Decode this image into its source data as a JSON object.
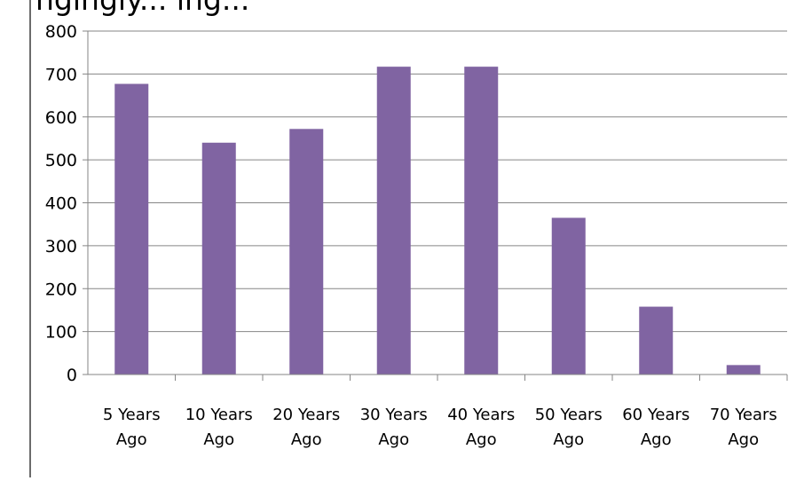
{
  "chart_data": {
    "type": "bar",
    "title_fragment": "ngingly... ing...",
    "categories": [
      "5 Years Ago",
      "10 Years Ago",
      "20 Years Ago",
      "30 Years Ago",
      "40 Years Ago",
      "50 Years Ago",
      "60 Years Ago",
      "70 Years Ago"
    ],
    "category_lines": [
      [
        "5 Years",
        "Ago"
      ],
      [
        "10 Years",
        "Ago"
      ],
      [
        "20 Years",
        "Ago"
      ],
      [
        "30 Years",
        "Ago"
      ],
      [
        "40 Years",
        "Ago"
      ],
      [
        "50 Years",
        "Ago"
      ],
      [
        "60 Years",
        "Ago"
      ],
      [
        "70 Years",
        "Ago"
      ]
    ],
    "values": [
      677,
      540,
      572,
      717,
      717,
      365,
      158,
      22
    ],
    "xlabel": "",
    "ylabel": "",
    "ylim": [
      0,
      800
    ],
    "yticks": [
      "0",
      "100",
      "200",
      "300",
      "400",
      "500",
      "600",
      "700",
      "800"
    ],
    "grid": true,
    "legend": "none",
    "colors": {
      "bar": "#8064a2",
      "grid": "#868686",
      "axis": "#868686",
      "frame": "#6b6b6b"
    }
  }
}
